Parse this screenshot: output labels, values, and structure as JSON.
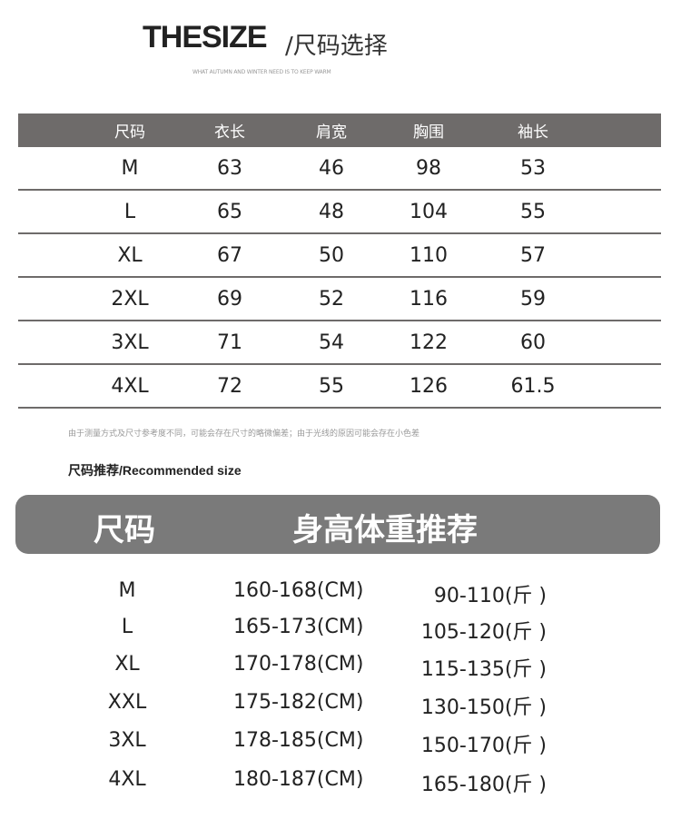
{
  "header": {
    "title": "THESIZE",
    "title_cn": "/尺码选择",
    "subtitle": "WHAT AUTUMN AND WINTER NEED IS TO KEEP WARM"
  },
  "size_table": {
    "columns": [
      "尺码",
      "衣长",
      "肩宽",
      "胸围",
      "袖长"
    ],
    "rows": [
      [
        "M",
        "63",
        "46",
        "98",
        "53"
      ],
      [
        "L",
        "65",
        "48",
        "104",
        "55"
      ],
      [
        "XL",
        "67",
        "50",
        "110",
        "57"
      ],
      [
        "2XL",
        "69",
        "52",
        "116",
        "59"
      ],
      [
        "3XL",
        "71",
        "54",
        "122",
        "60"
      ],
      [
        "4XL",
        "72",
        "55",
        "126",
        "61.5"
      ]
    ]
  },
  "note": "由于测量方式及尺寸参考度不同，可能会存在尺寸的略微偏差；由于光线的原因可能会存在小色差",
  "recommend": {
    "label": "尺码推荐/Recommended size",
    "header_size": "尺码",
    "header_body": "身高体重推荐",
    "rows": [
      [
        "M",
        "160-168(CM)",
        "90-110(斤 )"
      ],
      [
        "L",
        "165-173(CM)",
        "105-120(斤 )"
      ],
      [
        "XL",
        "170-178(CM)",
        "115-135(斤 )"
      ],
      [
        "XXL",
        "175-182(CM)",
        "130-150(斤 )"
      ],
      [
        "3XL",
        "178-185(CM)",
        "150-170(斤 )"
      ],
      [
        "4XL",
        "180-187(CM)",
        "165-180(斤 )"
      ]
    ]
  },
  "colors": {
    "header_bg": "#6e6b6a",
    "bar_bg": "#7a7a7a"
  }
}
